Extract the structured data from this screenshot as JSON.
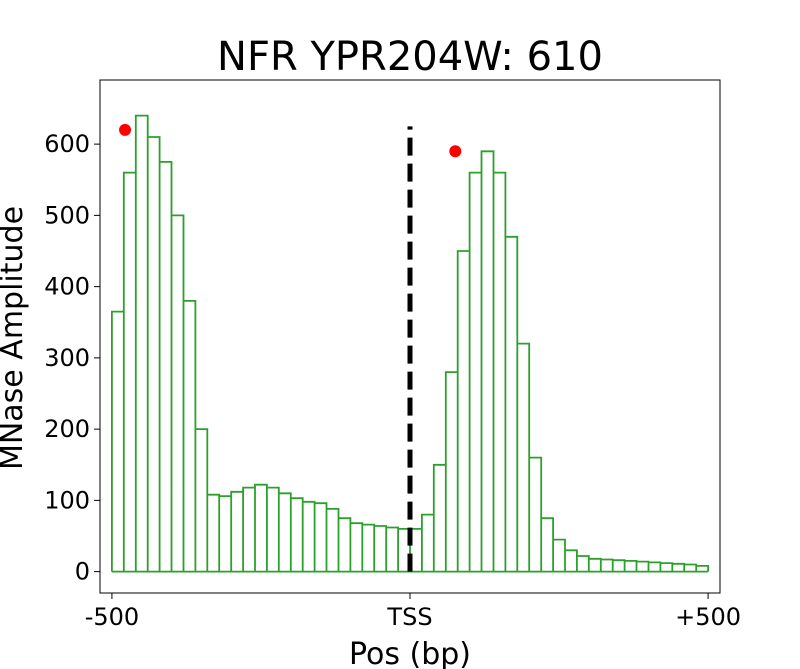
{
  "chart_data": {
    "type": "line",
    "title": "NFR YPR204W: 610",
    "xlabel": "Pos (bp)",
    "ylabel": "MNase Amplitude",
    "xlim": [
      -520,
      520
    ],
    "ylim": [
      -30,
      690
    ],
    "x_ticks": [
      {
        "value": -500,
        "label": "-500"
      },
      {
        "value": 0,
        "label": "TSS"
      },
      {
        "value": 500,
        "label": "+500"
      }
    ],
    "y_ticks": [
      {
        "value": 0,
        "label": "0"
      },
      {
        "value": 100,
        "label": "100"
      },
      {
        "value": 200,
        "label": "200"
      },
      {
        "value": 300,
        "label": "300"
      },
      {
        "value": 400,
        "label": "400"
      },
      {
        "value": 500,
        "label": "500"
      },
      {
        "value": 600,
        "label": "600"
      }
    ],
    "grid": false,
    "series": [
      {
        "style": "stepped line, each step dropping to 0",
        "color": "#2ca02c",
        "x": [
          -500,
          -480,
          -460,
          -440,
          -420,
          -400,
          -380,
          -360,
          -340,
          -320,
          -300,
          -280,
          -260,
          -240,
          -220,
          -200,
          -180,
          -160,
          -140,
          -120,
          -100,
          -80,
          -60,
          -40,
          -20,
          0,
          20,
          40,
          60,
          80,
          100,
          120,
          140,
          160,
          180,
          200,
          220,
          240,
          260,
          280,
          300,
          320,
          340,
          360,
          380,
          400,
          420,
          440,
          460,
          480,
          500
        ],
        "y": [
          365,
          560,
          640,
          610,
          575,
          500,
          380,
          200,
          108,
          106,
          112,
          118,
          122,
          118,
          110,
          103,
          98,
          96,
          88,
          75,
          68,
          66,
          64,
          62,
          60,
          60,
          80,
          150,
          280,
          450,
          560,
          590,
          560,
          470,
          320,
          160,
          75,
          45,
          30,
          22,
          18,
          17,
          16,
          15,
          14,
          13,
          12,
          11,
          10,
          8,
          5
        ]
      }
    ],
    "markers": [
      {
        "x": -478,
        "y": 620,
        "color": "#ff0000"
      },
      {
        "x": 76,
        "y": 590,
        "color": "#ff0000"
      }
    ],
    "vline": {
      "x": 0,
      "y_top": 625,
      "style": "dashed",
      "color": "#000000"
    }
  }
}
